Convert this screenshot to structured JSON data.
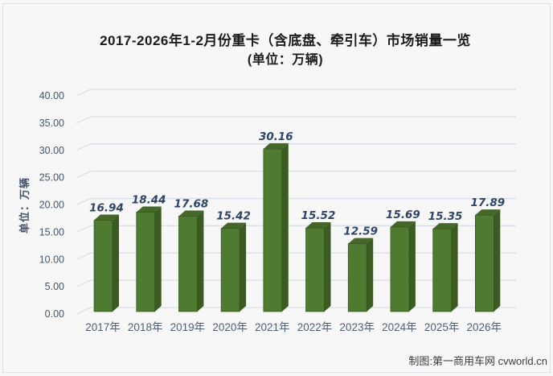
{
  "header": {
    "title": "2017-2026年1-2月份重卡（含底盘、牵引车）市场销量一览",
    "subtitle": "(单位：万辆)"
  },
  "chart_data": {
    "type": "bar",
    "title": "2017-2026年1-2月份重卡（含底盘、牵引车）市场销量一览",
    "subtitle": "(单位：万辆)",
    "categories": [
      "2017年",
      "2018年",
      "2019年",
      "2020年",
      "2021年",
      "2022年",
      "2023年",
      "2024年",
      "2025年",
      "2026年"
    ],
    "values": [
      16.94,
      18.44,
      17.68,
      15.42,
      30.16,
      15.52,
      12.59,
      15.69,
      15.35,
      17.89
    ],
    "xlabel": "",
    "ylabel": "单位：万辆",
    "ylim": [
      0,
      40
    ],
    "ytick_step": 5,
    "yticks": [
      "0.00",
      "5.00",
      "10.00",
      "15.00",
      "20.00",
      "25.00",
      "30.00",
      "35.00",
      "40.00"
    ],
    "grid": true,
    "legend": false,
    "style_3d": true,
    "colors": {
      "bar_front": "#4e7b2f",
      "bar_side": "#3b5c21",
      "bar_top": "#45682a",
      "bar_seam": "#2f4a1a",
      "grid_line": "#d8dde4",
      "value_label": "#2e4468",
      "axis_text": "#505e74",
      "title_text": "#1c1c1c"
    }
  },
  "footer": {
    "credit": "制图:第一商用车网 cvworld.cn"
  }
}
